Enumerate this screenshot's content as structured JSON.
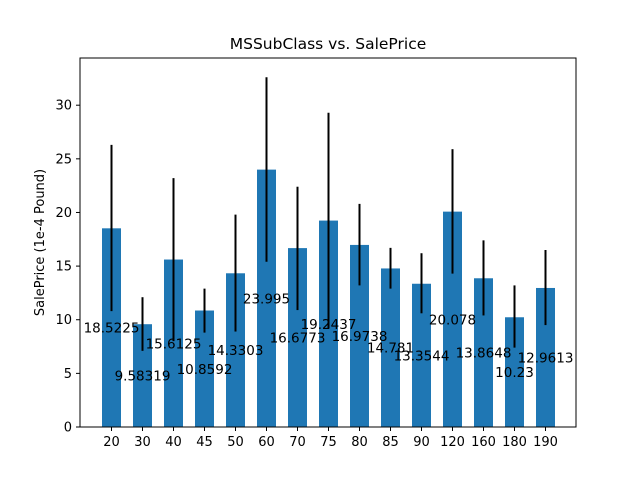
{
  "chart_data": {
    "type": "bar",
    "title": "MSSubClass vs. SalePrice",
    "xlabel": "",
    "ylabel": "SalePrice (1e-4 Pound)",
    "categories": [
      "20",
      "30",
      "40",
      "45",
      "50",
      "60",
      "70",
      "75",
      "80",
      "85",
      "90",
      "120",
      "160",
      "180",
      "190"
    ],
    "values": [
      18.5225,
      9.58319,
      15.6125,
      10.8592,
      14.3303,
      23.995,
      16.6773,
      19.2437,
      16.9738,
      14.781,
      13.3544,
      20.078,
      13.8648,
      10.23,
      12.9613
    ],
    "value_labels": [
      "18.5225",
      "9.58319",
      "15.6125",
      "10.8592",
      "14.3303",
      "23.995",
      "16.6773",
      "19.2437",
      "16.9738",
      "14.781",
      "13.3544",
      "20.078",
      "13.8648",
      "10.23",
      "12.9613"
    ],
    "error_low": [
      10.8,
      7.1,
      8.0,
      8.8,
      8.9,
      15.4,
      10.9,
      9.2,
      13.2,
      12.9,
      10.6,
      14.3,
      10.4,
      7.4,
      9.5
    ],
    "error_high": [
      26.3,
      12.1,
      23.2,
      12.9,
      19.8,
      32.6,
      22.4,
      29.3,
      20.8,
      16.7,
      16.2,
      25.9,
      17.4,
      13.2,
      16.5
    ],
    "ylim": [
      0,
      34.4
    ],
    "yticks": [
      0,
      5,
      10,
      15,
      20,
      25,
      30
    ],
    "grid": false,
    "legend": "none",
    "bar_color": "#1f77b4",
    "error_color": "#000000"
  }
}
